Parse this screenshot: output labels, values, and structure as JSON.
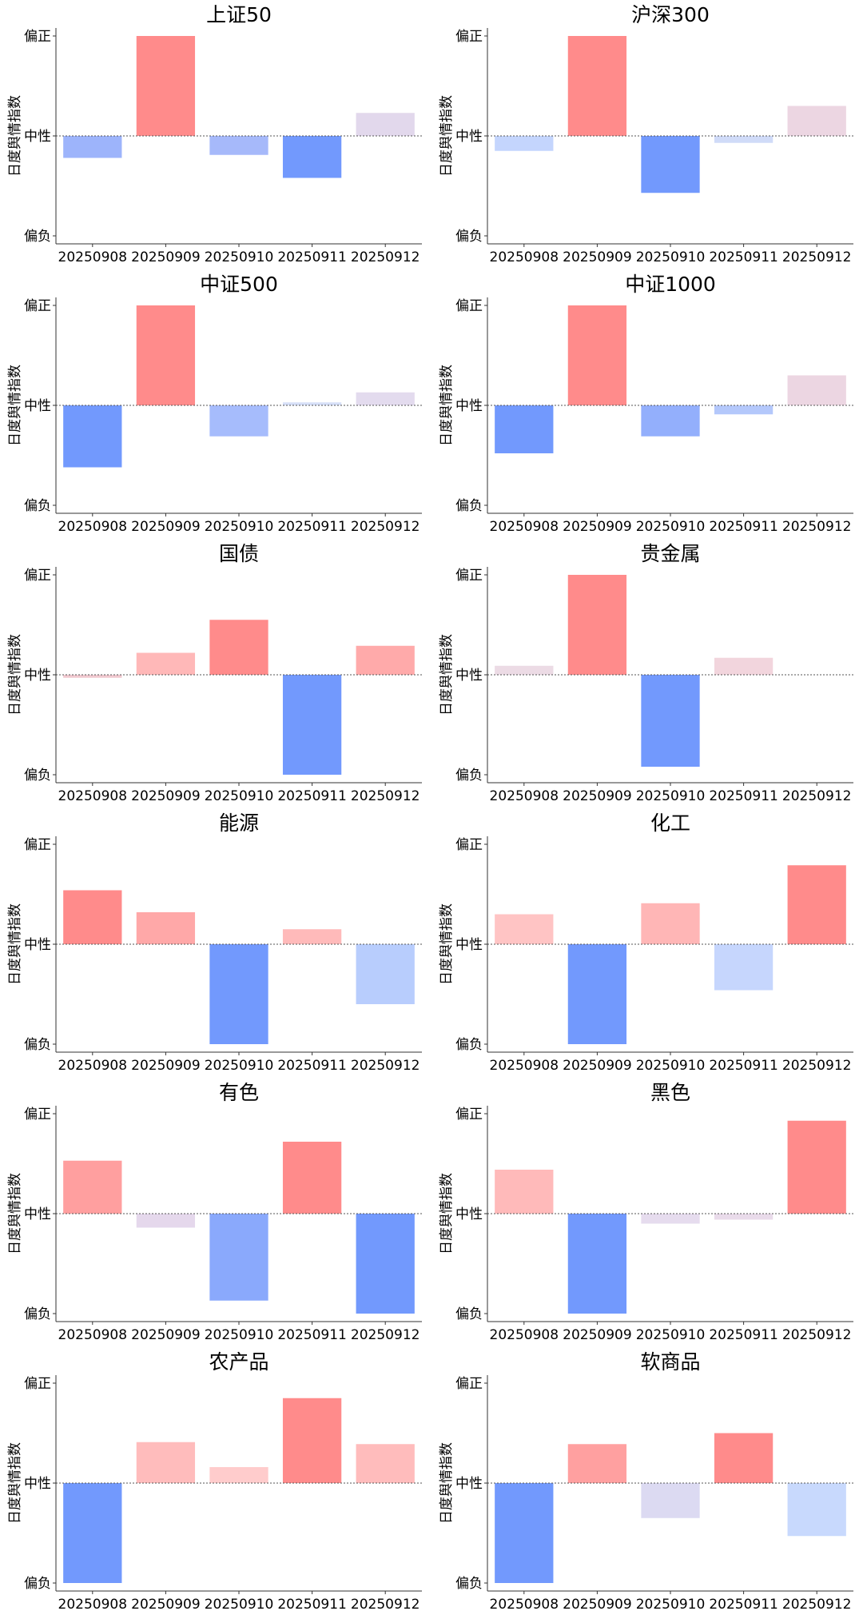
{
  "chart_data": [
    {
      "type": "bar",
      "title": "上证50",
      "ylabel": "日度舆情指数",
      "categories": [
        "20250908",
        "20250909",
        "20250910",
        "20250911",
        "20250912"
      ],
      "values": [
        -0.22,
        1.0,
        -0.19,
        -0.42,
        0.23
      ],
      "colors": [
        "#9db4fb",
        "#ff8b8b",
        "#a6b9fa",
        "#7299fd",
        "#e2d8ec"
      ],
      "yticks": [
        "偏正",
        "中性",
        "偏负"
      ],
      "ylim": [
        -1,
        1
      ]
    },
    {
      "type": "bar",
      "title": "沪深300",
      "ylabel": "日度舆情指数",
      "categories": [
        "20250908",
        "20250909",
        "20250910",
        "20250911",
        "20250912"
      ],
      "values": [
        -0.15,
        1.0,
        -0.57,
        -0.07,
        0.3
      ],
      "colors": [
        "#c4d5fd",
        "#ff8b8b",
        "#7299fd",
        "#d0dbf8",
        "#ecd6e2"
      ],
      "yticks": [
        "偏正",
        "中性",
        "偏负"
      ],
      "ylim": [
        -1,
        1
      ]
    },
    {
      "type": "bar",
      "title": "中证500",
      "ylabel": "日度舆情指数",
      "categories": [
        "20250908",
        "20250909",
        "20250910",
        "20250911",
        "20250912"
      ],
      "values": [
        -0.62,
        1.0,
        -0.31,
        0.03,
        0.13
      ],
      "colors": [
        "#7299fd",
        "#ff8b8b",
        "#a6bcfc",
        "#d6dff7",
        "#e3dbee"
      ],
      "yticks": [
        "偏正",
        "中性",
        "偏负"
      ],
      "ylim": [
        -1,
        1
      ]
    },
    {
      "type": "bar",
      "title": "中证1000",
      "ylabel": "日度舆情指数",
      "categories": [
        "20250908",
        "20250909",
        "20250910",
        "20250911",
        "20250912"
      ],
      "values": [
        -0.48,
        1.0,
        -0.31,
        -0.09,
        0.3
      ],
      "colors": [
        "#7299fd",
        "#ff8b8b",
        "#93affc",
        "#b4c8fb",
        "#ecd6e2"
      ],
      "yticks": [
        "偏正",
        "中性",
        "偏负"
      ],
      "ylim": [
        -1,
        1
      ]
    },
    {
      "type": "bar",
      "title": "国债",
      "ylabel": "日度舆情指数",
      "categories": [
        "20250908",
        "20250909",
        "20250910",
        "20250911",
        "20250912"
      ],
      "values": [
        -0.03,
        0.22,
        0.55,
        -1.0,
        0.29
      ],
      "colors": [
        "#f0c8cf",
        "#ffb8b8",
        "#ff8b8b",
        "#7299fd",
        "#ffaaaa"
      ],
      "yticks": [
        "偏正",
        "中性",
        "偏负"
      ],
      "ylim": [
        -1,
        1
      ]
    },
    {
      "type": "bar",
      "title": "贵金属",
      "ylabel": "日度舆情指数",
      "categories": [
        "20250908",
        "20250909",
        "20250910",
        "20250911",
        "20250912"
      ],
      "values": [
        0.09,
        1.0,
        -0.92,
        0.17,
        0
      ],
      "colors": [
        "#ecdbe5",
        "#ff8b8b",
        "#7299fd",
        "#f2d5dd",
        "#ffffff"
      ],
      "yticks": [
        "偏正",
        "中性",
        "偏负"
      ],
      "ylim": [
        -1,
        1
      ]
    },
    {
      "type": "bar",
      "title": "能源",
      "ylabel": "日度舆情指数",
      "categories": [
        "20250908",
        "20250909",
        "20250910",
        "20250911",
        "20250912"
      ],
      "values": [
        0.54,
        0.32,
        -1.0,
        0.15,
        -0.6
      ],
      "colors": [
        "#ff8b8b",
        "#ffa8a8",
        "#7299fd",
        "#ffbaba",
        "#b8cdfd"
      ],
      "yticks": [
        "偏正",
        "中性",
        "偏负"
      ],
      "ylim": [
        -1,
        1
      ]
    },
    {
      "type": "bar",
      "title": "化工",
      "ylabel": "日度舆情指数",
      "categories": [
        "20250908",
        "20250909",
        "20250910",
        "20250911",
        "20250912"
      ],
      "values": [
        0.3,
        -1.0,
        0.41,
        -0.46,
        0.79
      ],
      "colors": [
        "#ffc4c4",
        "#7299fd",
        "#ffb6b6",
        "#c6d6fd",
        "#ff8b8b"
      ],
      "yticks": [
        "偏正",
        "中性",
        "偏负"
      ],
      "ylim": [
        -1,
        1
      ]
    },
    {
      "type": "bar",
      "title": "有色",
      "ylabel": "日度舆情指数",
      "categories": [
        "20250908",
        "20250909",
        "20250910",
        "20250911",
        "20250912"
      ],
      "values": [
        0.53,
        -0.14,
        -0.87,
        0.72,
        -1.0
      ],
      "colors": [
        "#ff9f9f",
        "#e5d8ec",
        "#8aa9fc",
        "#ff8b8b",
        "#7299fd"
      ],
      "yticks": [
        "偏正",
        "中性",
        "偏负"
      ],
      "ylim": [
        -1,
        1
      ]
    },
    {
      "type": "bar",
      "title": "黑色",
      "ylabel": "日度舆情指数",
      "categories": [
        "20250908",
        "20250909",
        "20250910",
        "20250911",
        "20250912"
      ],
      "values": [
        0.44,
        -1.0,
        -0.1,
        -0.06,
        0.93
      ],
      "colors": [
        "#ffbaba",
        "#7299fd",
        "#e6dcee",
        "#e9dbea",
        "#ff8b8b"
      ],
      "yticks": [
        "偏正",
        "中性",
        "偏负"
      ],
      "ylim": [
        -1,
        1
      ]
    },
    {
      "type": "bar",
      "title": "农产品",
      "ylabel": "日度舆情指数",
      "categories": [
        "20250908",
        "20250909",
        "20250910",
        "20250911",
        "20250912"
      ],
      "values": [
        -1.0,
        0.41,
        0.16,
        0.85,
        0.39
      ],
      "colors": [
        "#7299fd",
        "#ffbcbc",
        "#ffcccc",
        "#ff8b8b",
        "#ffbcbc"
      ],
      "yticks": [
        "偏正",
        "中性",
        "偏负"
      ],
      "ylim": [
        -1,
        1
      ]
    },
    {
      "type": "bar",
      "title": "软商品",
      "ylabel": "日度舆情指数",
      "categories": [
        "20250908",
        "20250909",
        "20250910",
        "20250911",
        "20250912"
      ],
      "values": [
        -1.0,
        0.39,
        -0.35,
        0.5,
        -0.53
      ],
      "colors": [
        "#7299fd",
        "#ffa0a0",
        "#dcdaf2",
        "#ff8b8b",
        "#c8d9fd"
      ],
      "yticks": [
        "偏正",
        "中性",
        "偏负"
      ],
      "ylim": [
        -1,
        1
      ]
    }
  ]
}
